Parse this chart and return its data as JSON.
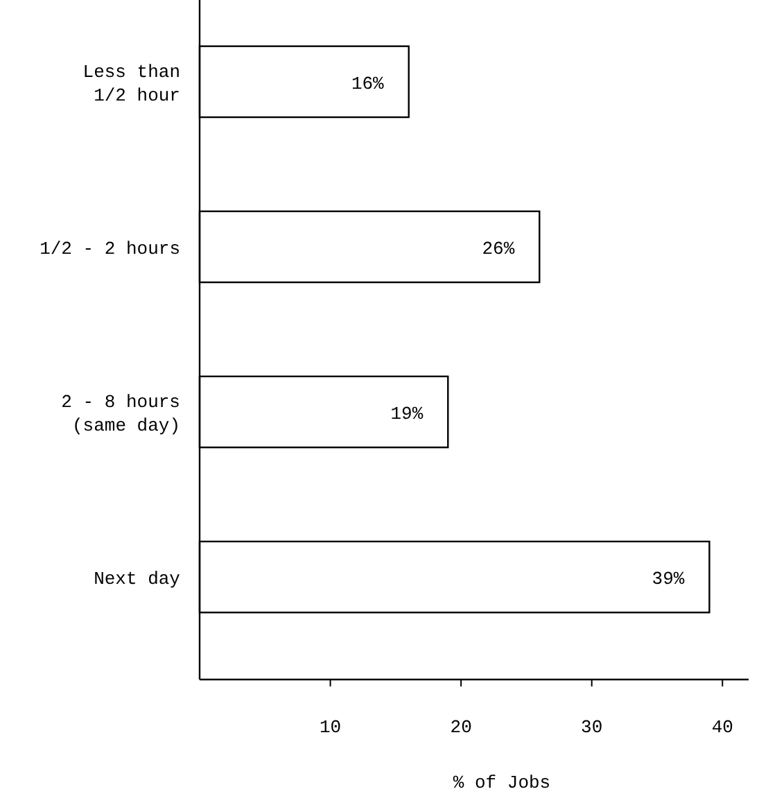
{
  "chart_data": {
    "type": "bar",
    "orientation": "horizontal",
    "categories": [
      "Less than\n1/2 hour",
      "1/2 - 2 hours",
      "2 - 8 hours\n(same day)",
      "Next day"
    ],
    "values": [
      16,
      26,
      19,
      39
    ],
    "value_labels": [
      "16%",
      "26%",
      "19%",
      "39%"
    ],
    "color": "#ffffff",
    "xlim": [
      0,
      42
    ],
    "xticks": [
      10,
      20,
      30,
      40
    ],
    "xlabel": "% of Jobs",
    "grid": false
  }
}
